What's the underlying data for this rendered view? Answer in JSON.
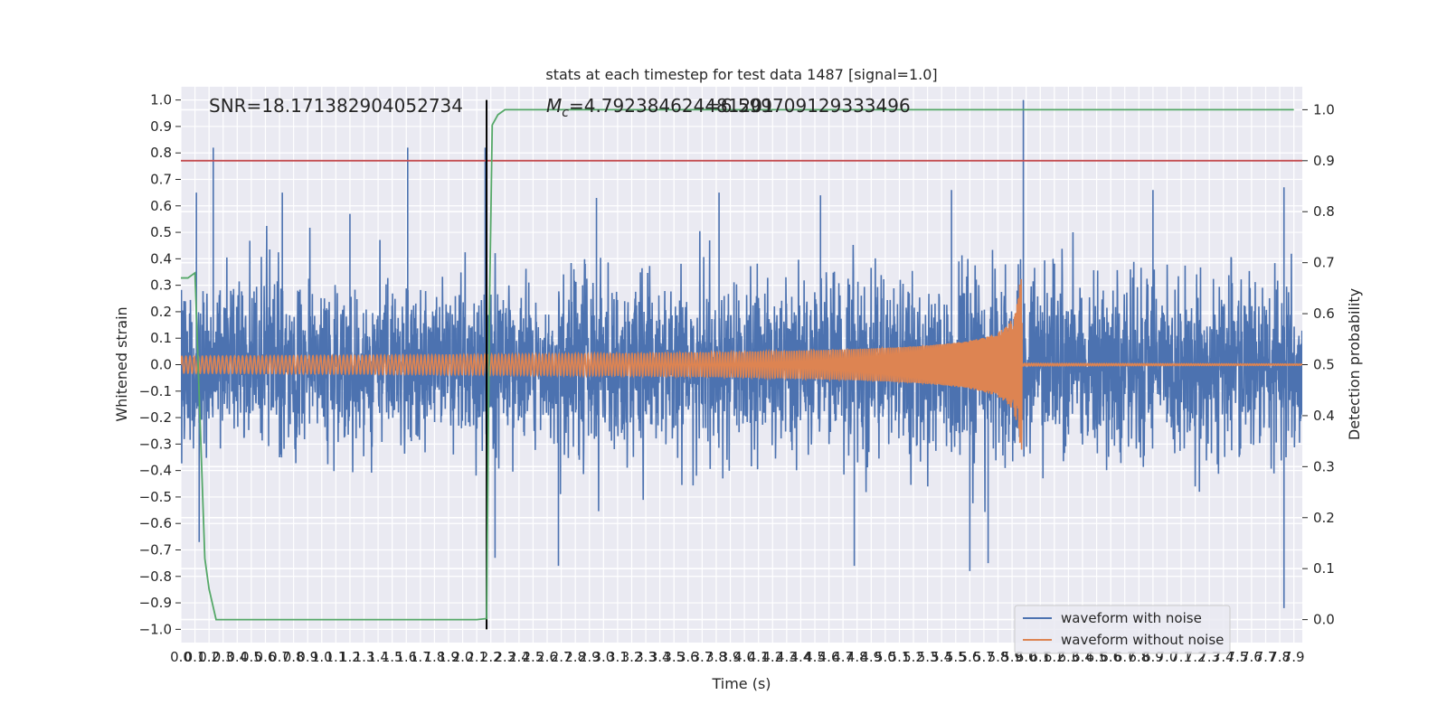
{
  "chart_data": {
    "type": "line",
    "title": "stats at each timestep for test data 1487 [signal=1.0]",
    "xlabel": "Time (s)",
    "ylabel": "Whitened strain",
    "y2label": "Detection probability",
    "xlim": [
      0.0,
      7.96
    ],
    "ylim": [
      -1.05,
      1.05
    ],
    "y2lim": [
      -0.045,
      1.045
    ],
    "x_ticks": [
      "0.0",
      "0.1",
      "0.2",
      "0.3",
      "0.4",
      "0.5",
      "0.6",
      "0.7",
      "0.8",
      "0.9",
      "1.0",
      "1.1",
      "1.2",
      "1.3",
      "1.4",
      "1.5",
      "1.6",
      "1.7",
      "1.8",
      "1.9",
      "2.0",
      "2.1",
      "2.2",
      "2.3",
      "2.4",
      "2.5",
      "2.6",
      "2.7",
      "2.8",
      "2.9",
      "3.0",
      "3.1",
      "3.2",
      "3.3",
      "3.4",
      "3.5",
      "3.6",
      "3.7",
      "3.8",
      "3.9",
      "4.0",
      "4.1",
      "4.2",
      "4.3",
      "4.4",
      "4.5",
      "4.6",
      "4.7",
      "4.8",
      "4.9",
      "5.0",
      "5.1",
      "5.2",
      "5.3",
      "5.4",
      "5.5",
      "5.6",
      "5.7",
      "5.8",
      "5.9",
      "6.0",
      "6.1",
      "6.2",
      "6.3",
      "6.4",
      "6.5",
      "6.6",
      "6.7",
      "6.8",
      "6.9",
      "7.0",
      "7.1",
      "7.2",
      "7.3",
      "7.4",
      "7.5",
      "7.6",
      "7.7",
      "7.8",
      "7.9"
    ],
    "y_ticks": [
      "−1.0",
      "−0.9",
      "−0.8",
      "−0.7",
      "−0.6",
      "−0.5",
      "−0.4",
      "−0.3",
      "−0.2",
      "−0.1",
      "0.0",
      "0.1",
      "0.2",
      "0.3",
      "0.4",
      "0.5",
      "0.6",
      "0.7",
      "0.8",
      "0.9",
      "1.0"
    ],
    "y2_ticks": [
      "0.0",
      "0.1",
      "0.2",
      "0.3",
      "0.4",
      "0.5",
      "0.6",
      "0.7",
      "0.8",
      "0.9",
      "1.0"
    ],
    "grid": true,
    "legend_position": "bottom-right",
    "annotations": {
      "snr": "SNR=18.171382904052734",
      "mc": "=4.792384624481201",
      "mc_overlap": "=6.599709129333496",
      "mc_symbol": "M",
      "mc_subscript": "c"
    },
    "series": [
      {
        "name": "waveform with noise",
        "color": "#4c72b0",
        "axis": "left",
        "noise_rms": 0.15,
        "peaks": [
          {
            "x": 0.23,
            "y": 0.82
          },
          {
            "x": 1.61,
            "y": 0.82
          },
          {
            "x": 2.16,
            "y": 0.82
          },
          {
            "x": 5.98,
            "y": 1.0
          },
          {
            "x": 0.11,
            "y": 0.65
          },
          {
            "x": 0.72,
            "y": 0.65
          },
          {
            "x": 1.2,
            "y": 0.57
          },
          {
            "x": 2.95,
            "y": 0.63
          },
          {
            "x": 3.82,
            "y": 0.65
          },
          {
            "x": 4.54,
            "y": 0.64
          },
          {
            "x": 5.47,
            "y": 0.66
          },
          {
            "x": 6.9,
            "y": 0.66
          },
          {
            "x": 7.83,
            "y": 0.67
          }
        ],
        "troughs": [
          {
            "x": 7.83,
            "y": -0.92
          },
          {
            "x": 5.6,
            "y": -0.78
          },
          {
            "x": 2.68,
            "y": -0.76
          },
          {
            "x": 4.78,
            "y": -0.76
          },
          {
            "x": 2.23,
            "y": -0.73
          },
          {
            "x": 0.13,
            "y": -0.67
          },
          {
            "x": 5.73,
            "y": -0.75
          }
        ]
      },
      {
        "name": "waveform without noise",
        "color": "#dd8452",
        "axis": "left",
        "chirp": {
          "t_merge": 5.97,
          "amp_start": 0.032,
          "amp_peak": 0.33,
          "cycles_in_first_2s": 110,
          "ringdown": 0.005
        }
      },
      {
        "name": "",
        "color": "#55a868",
        "axis": "right",
        "x": [
          0.0,
          0.05,
          0.1,
          0.17,
          0.2,
          0.25,
          0.3,
          0.5,
          1.0,
          1.5,
          2.0,
          2.1,
          2.17,
          2.19,
          2.21,
          2.25,
          2.3,
          2.45,
          2.6,
          3.0,
          4.0,
          5.0,
          6.0,
          7.0,
          7.9
        ],
        "values": [
          0.67,
          0.67,
          0.68,
          0.12,
          0.06,
          0.0,
          0.0,
          0.0,
          0.0,
          0.0,
          0.0,
          0.0,
          0.002,
          0.6,
          0.97,
          0.99,
          1.0,
          1.0,
          1.0,
          1.0,
          1.0,
          1.0,
          1.0,
          1.0,
          1.0
        ]
      }
    ],
    "hlines": [
      {
        "axis": "right",
        "y": 0.9,
        "color": "#c44e52"
      }
    ],
    "vlines": [
      {
        "axis": "left",
        "x": 2.17,
        "y_from": -1.0,
        "y_to": 1.0,
        "color": "#000000"
      }
    ]
  }
}
